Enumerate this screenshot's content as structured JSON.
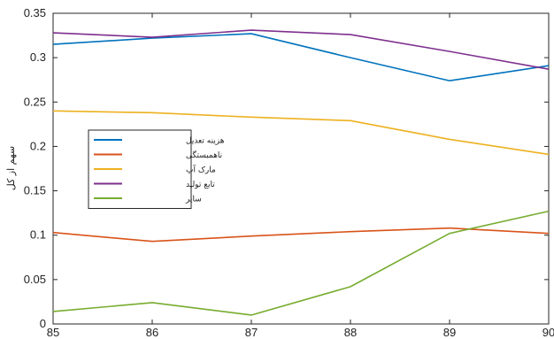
{
  "chart_data": {
    "type": "line",
    "title": "",
    "xlabel": "",
    "ylabel": "سهم از کل",
    "x": [
      85,
      86,
      87,
      88,
      89,
      90
    ],
    "xlim": [
      85,
      90
    ],
    "ylim": [
      0,
      0.35
    ],
    "xticks": [
      "85",
      "86",
      "87",
      "88",
      "89",
      "90"
    ],
    "yticks": [
      "0",
      "0.05",
      "0.1",
      "0.15",
      "0.2",
      "0.25",
      "0.3",
      "0.35"
    ],
    "grid": false,
    "legend_position": "left",
    "series": [
      {
        "name": "هزینه تعدیل",
        "color": "#0072BD",
        "values": [
          0.315,
          0.322,
          0.327,
          0.3,
          0.274,
          0.291
        ]
      },
      {
        "name": "ناهمبستگی",
        "color": "#D95319",
        "values": [
          0.103,
          0.093,
          0.099,
          0.104,
          0.108,
          0.102
        ]
      },
      {
        "name": "مارک آپ",
        "color": "#EDB120",
        "values": [
          0.24,
          0.238,
          0.233,
          0.229,
          0.208,
          0.191
        ]
      },
      {
        "name": "تابع تولید",
        "color": "#7E2F8E",
        "values": [
          0.328,
          0.323,
          0.331,
          0.326,
          0.307,
          0.287
        ]
      },
      {
        "name": "سایر",
        "color": "#77AC30",
        "values": [
          0.014,
          0.024,
          0.01,
          0.042,
          0.102,
          0.127
        ]
      }
    ]
  }
}
